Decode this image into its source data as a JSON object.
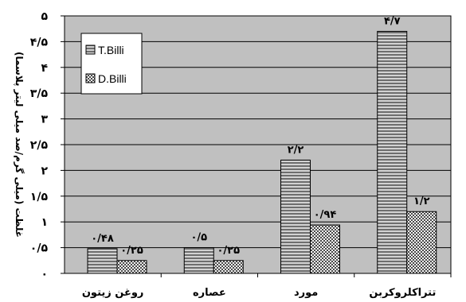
{
  "chart_data": {
    "type": "bar",
    "ylabel": "غلظت (میلی گرم/صد میلی لیتر پلاسما)",
    "ylim": [
      0,
      5
    ],
    "yticks": [
      0,
      0.5,
      1,
      1.5,
      2,
      2.5,
      3,
      3.5,
      4,
      4.5,
      5
    ],
    "ytick_labels": [
      "۰",
      "۰/۵",
      "۱",
      "۱/۵",
      "۲",
      "۲/۵",
      "۳",
      "۳/۵",
      "۴",
      "۴/۵",
      "۵"
    ],
    "grid": true,
    "legend_position": "top-left",
    "categories": [
      "روغن زیتون",
      "عصاره",
      "مورد",
      "تتراکلروکربن"
    ],
    "series": [
      {
        "name": "T.Billi",
        "values": [
          0.48,
          0.5,
          2.2,
          4.7
        ],
        "labels": [
          "۰/۴۸",
          "۰/۵",
          "۲/۲",
          "۴/۷"
        ],
        "pattern": "horizontal-stripes"
      },
      {
        "name": "D.Billi",
        "values": [
          0.25,
          0.25,
          0.94,
          1.2
        ],
        "labels": [
          "۰/۲۵",
          "۰/۲۵",
          "۰/۹۴",
          "۱/۲"
        ],
        "pattern": "checker"
      }
    ],
    "colors": {
      "plot_background": "#c0c0c0",
      "gridline": "#000000",
      "bar_dark": "#6e6e6e",
      "bar_light": "#f2f2f2"
    }
  }
}
